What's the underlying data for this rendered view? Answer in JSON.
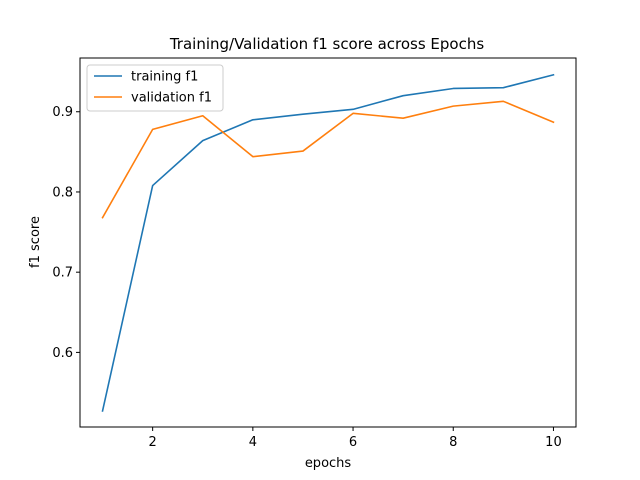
{
  "chart_data": {
    "type": "line",
    "title": "Training/Validation f1 score across Epochs",
    "xlabel": "epochs",
    "ylabel": "f1 score",
    "xlim": [
      0.55,
      10.45
    ],
    "ylim": [
      0.507,
      0.967
    ],
    "xticks": [
      2,
      4,
      6,
      8,
      10
    ],
    "yticks": [
      0.6,
      0.7,
      0.8,
      0.9
    ],
    "ytick_labels": [
      "0.6",
      "0.7",
      "0.8",
      "0.9"
    ],
    "grid": false,
    "legend": "top-left",
    "x": [
      1,
      2,
      3,
      4,
      5,
      6,
      7,
      8,
      9,
      10
    ],
    "series": [
      {
        "name": "training f1",
        "color": "#1f77b4",
        "values": [
          0.527,
          0.808,
          0.864,
          0.89,
          0.897,
          0.903,
          0.92,
          0.929,
          0.93,
          0.946
        ]
      },
      {
        "name": "validation f1",
        "color": "#ff7f0e",
        "values": [
          0.768,
          0.878,
          0.895,
          0.844,
          0.851,
          0.898,
          0.892,
          0.907,
          0.913,
          0.887
        ]
      }
    ]
  }
}
